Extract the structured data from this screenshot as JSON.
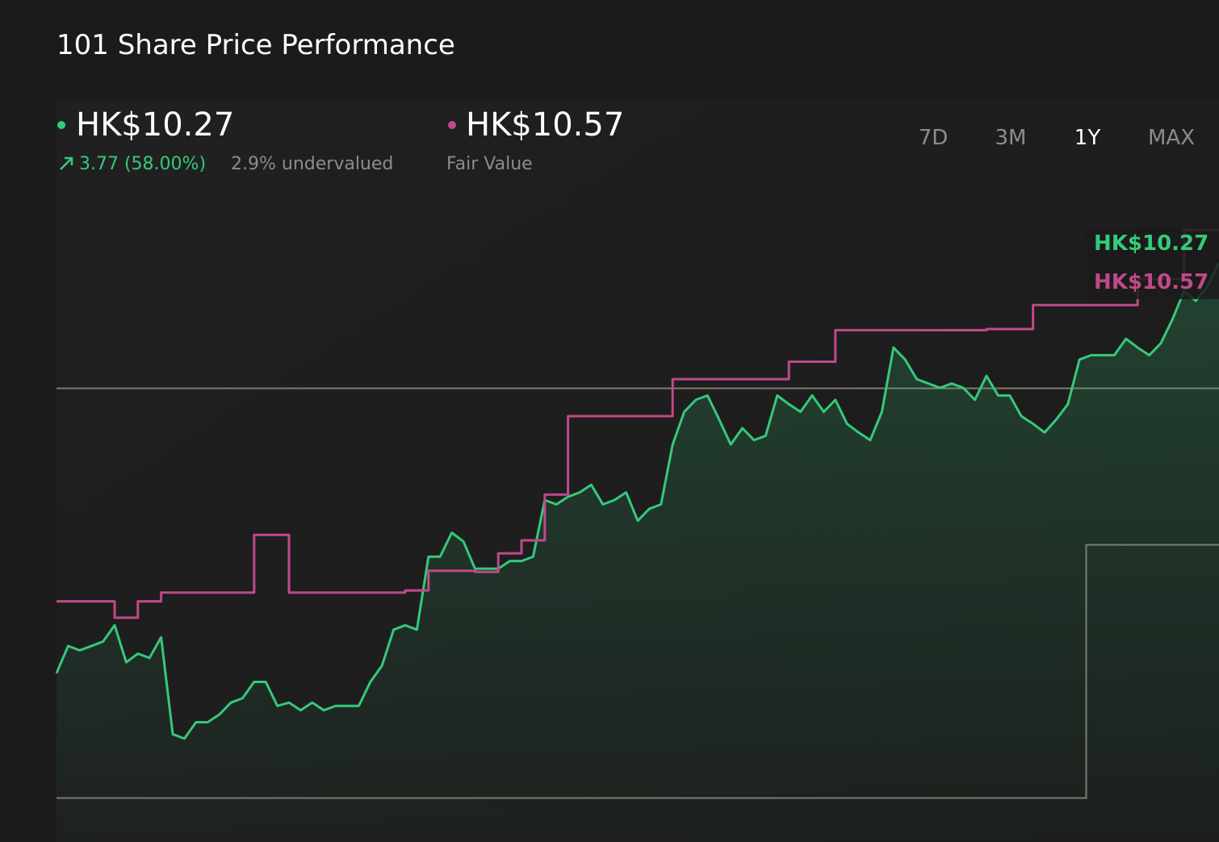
{
  "header": {
    "title": "101 Share Price Performance",
    "change": "3.77 (58.00%)",
    "valuation": "2.9% undervalued",
    "fair_value_caption": "Fair Value",
    "periods": [
      "7D",
      "3M",
      "1Y",
      "MAX"
    ],
    "selected_period": "1Y"
  },
  "chart_data": {
    "type": "line",
    "ylim": [
      5.35,
      10.83
    ],
    "grid": false,
    "series": [
      {
        "name": "HK$10.27",
        "color": "#35c97a",
        "fill": true,
        "values": [
          6.5,
          6.75,
          6.71,
          6.75,
          6.79,
          6.94,
          6.6,
          6.68,
          6.64,
          6.83,
          5.94,
          5.9,
          6.05,
          6.05,
          6.12,
          6.23,
          6.27,
          6.42,
          6.42,
          6.2,
          6.23,
          6.16,
          6.23,
          6.16,
          6.2,
          6.2,
          6.2,
          6.42,
          6.57,
          6.9,
          6.94,
          6.9,
          7.57,
          7.57,
          7.79,
          7.71,
          7.46,
          7.46,
          7.46,
          7.53,
          7.53,
          7.57,
          8.09,
          8.05,
          8.12,
          8.16,
          8.23,
          8.05,
          8.09,
          8.16,
          7.9,
          8.01,
          8.05,
          8.6,
          8.9,
          9.01,
          9.05,
          8.83,
          8.6,
          8.75,
          8.64,
          8.68,
          9.05,
          8.97,
          8.9,
          9.05,
          8.9,
          9.01,
          8.79,
          8.71,
          8.64,
          8.9,
          9.49,
          9.38,
          9.2,
          9.16,
          9.12,
          9.16,
          9.12,
          9.01,
          9.23,
          9.05,
          9.05,
          8.86,
          8.79,
          8.71,
          8.83,
          8.97,
          9.38,
          9.42,
          9.42,
          9.42,
          9.57,
          9.49,
          9.42,
          9.53,
          9.75,
          10.01,
          9.92,
          10.05,
          10.27
        ]
      },
      {
        "name": "HK$10.57",
        "color": "#c0498a",
        "step": true,
        "values": [
          7.16,
          7.16,
          7.16,
          7.16,
          7.16,
          7.01,
          7.01,
          7.16,
          7.16,
          7.24,
          7.24,
          7.24,
          7.24,
          7.24,
          7.24,
          7.24,
          7.24,
          7.77,
          7.77,
          7.77,
          7.24,
          7.24,
          7.24,
          7.24,
          7.24,
          7.24,
          7.24,
          7.24,
          7.24,
          7.24,
          7.26,
          7.26,
          7.44,
          7.44,
          7.44,
          7.44,
          7.43,
          7.43,
          7.6,
          7.6,
          7.72,
          7.72,
          8.14,
          8.14,
          8.86,
          8.86,
          8.86,
          8.86,
          8.86,
          8.86,
          8.86,
          8.86,
          8.86,
          9.2,
          9.2,
          9.2,
          9.2,
          9.2,
          9.2,
          9.2,
          9.2,
          9.2,
          9.2,
          9.36,
          9.36,
          9.36,
          9.36,
          9.65,
          9.65,
          9.65,
          9.65,
          9.65,
          9.65,
          9.65,
          9.65,
          9.65,
          9.65,
          9.65,
          9.65,
          9.65,
          9.66,
          9.66,
          9.66,
          9.66,
          9.88,
          9.88,
          9.88,
          9.88,
          9.88,
          9.88,
          9.88,
          9.88,
          9.88,
          10.12,
          10.12,
          10.12,
          10.12,
          10.57,
          10.57,
          10.57,
          10.57
        ]
      }
    ]
  }
}
